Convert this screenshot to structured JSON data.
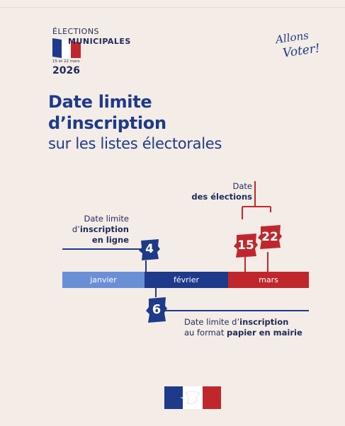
{
  "header": {
    "label_small": "ÉLECTIONS",
    "label_main": "MUNICIPALES",
    "dates_small": "15 et 22 mars",
    "year": "2026",
    "slogan_line1": "Allons",
    "slogan_line2": "Voter!"
  },
  "title": {
    "line1": "Date limite",
    "line2": "d’inscription",
    "line3": "sur les listes électorales"
  },
  "timeline": {
    "months": [
      "janvier",
      "février",
      "mars"
    ],
    "online_day": "4",
    "paper_day": "6",
    "election_day_1": "15",
    "election_day_2": "22",
    "elections_label_top": "Date",
    "elections_label_bottom": "des élections",
    "online_label_l1": "Date limite",
    "online_label_l2_prefix": "d’",
    "online_label_l2_bold": "inscription",
    "online_label_l3": "en ligne",
    "paper_label_l1_prefix": "Date limite d’",
    "paper_label_l1_bold": "inscription",
    "paper_label_l2_prefix": "au format ",
    "paper_label_l2_bold": "papier en mairie"
  },
  "colors": {
    "navy": "#1e3a8a",
    "light_blue": "#6b8fd6",
    "red": "#c0272d",
    "background": "#f4ece6"
  }
}
